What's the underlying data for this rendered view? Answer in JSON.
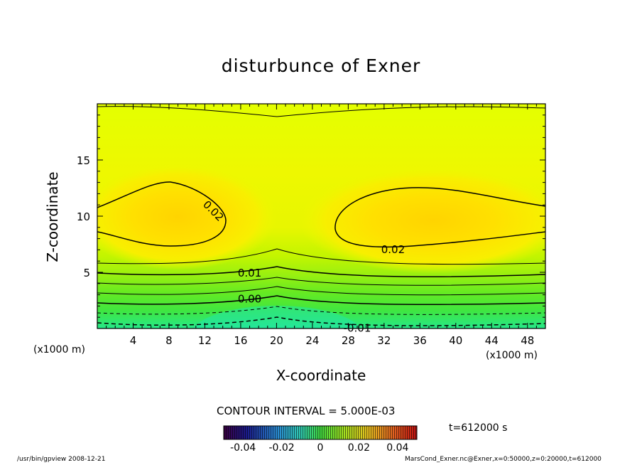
{
  "chart_data": {
    "type": "heatmap",
    "subtype": "filled-contour",
    "title": "disturbunce of Exner",
    "xlabel": "X-coordinate",
    "ylabel": "Z-coordinate",
    "x_unit_left": "(x1000 m)",
    "x_unit_right": "(x1000 m)",
    "xlim": [
      0,
      50
    ],
    "ylim": [
      0,
      20
    ],
    "x_ticks": [
      4,
      8,
      12,
      16,
      20,
      24,
      28,
      32,
      36,
      40,
      44,
      48
    ],
    "y_ticks": [
      5,
      10,
      15
    ],
    "contour_interval_text": "CONTOUR INTERVAL = 5.000E-03",
    "contour_labels": [
      {
        "text": "0.02",
        "x": 13,
        "z": 10.5
      },
      {
        "text": "0.02",
        "x": 33,
        "z": 7.1
      },
      {
        "text": "0.01",
        "x": 17,
        "z": 5.0
      },
      {
        "text": "0.00",
        "x": 17,
        "z": 2.7
      },
      {
        "text": "-0.01",
        "x": 29,
        "z": 0.1
      }
    ],
    "field_description_points": {
      "maxima": [
        {
          "x": 8,
          "z": 9.5,
          "value": 0.024
        },
        {
          "x": 35,
          "z": 9.5,
          "value": 0.024
        }
      ],
      "minimum": {
        "x": 20,
        "z": 0,
        "value": -0.012
      }
    },
    "colorbar": {
      "ticks": [
        "-0.04",
        "-0.02",
        "0",
        "0.02",
        "0.04"
      ],
      "range": [
        -0.05,
        0.05
      ]
    },
    "time_label": "t=612000 s"
  },
  "footer": {
    "left": "/usr/bin/gpview   2008-12-21",
    "right": "MarsCond_Exner.nc@Exner,x=0:50000,z=0:20000,t=612000"
  },
  "colors": {
    "yellow_high": "#ffdd00",
    "yellow": "#eeff00",
    "green": "#44ee22",
    "cyan_low": "#22eeaa"
  }
}
